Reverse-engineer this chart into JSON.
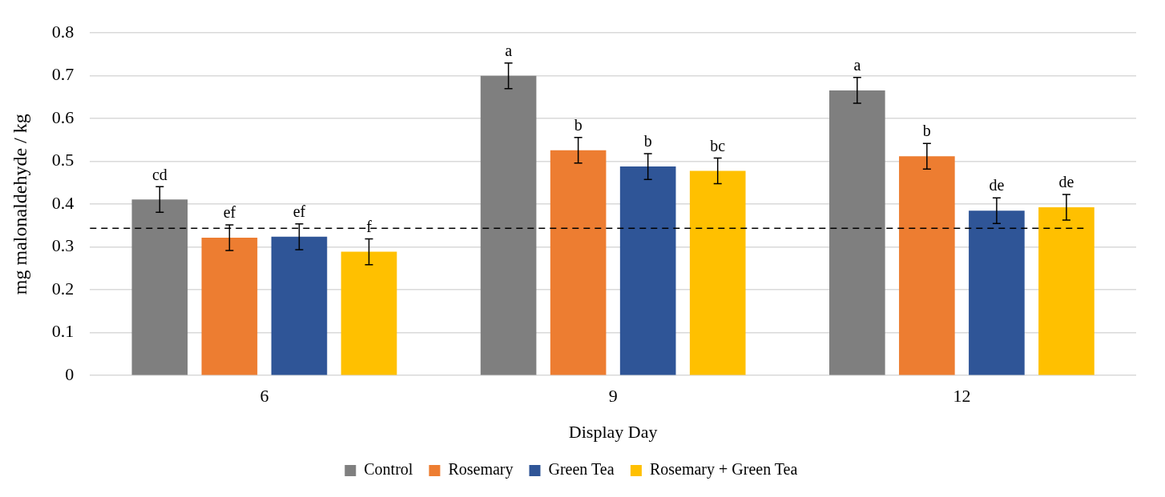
{
  "chart_data": {
    "type": "bar",
    "xlabel": "Display Day",
    "ylabel": "mg malonaldehyde / kg",
    "categories": [
      "6",
      "9",
      "12"
    ],
    "series": [
      {
        "name": "Control",
        "color": "#7f7f7f",
        "values": [
          0.411,
          0.7,
          0.666
        ],
        "errors": [
          0.03,
          0.03,
          0.03
        ],
        "value_labels": [
          "cd",
          "a",
          "a"
        ]
      },
      {
        "name": "Rosemary",
        "color": "#ed7d31",
        "values": [
          0.322,
          0.526,
          0.512
        ],
        "errors": [
          0.03,
          0.03,
          0.03
        ],
        "value_labels": [
          "ef",
          "b",
          "b"
        ]
      },
      {
        "name": "Green Tea",
        "color": "#2f5597",
        "values": [
          0.324,
          0.488,
          0.385
        ],
        "errors": [
          0.03,
          0.03,
          0.03
        ],
        "value_labels": [
          "ef",
          "b",
          "de"
        ]
      },
      {
        "name": "Rosemary + Green Tea",
        "color": "#ffc000",
        "values": [
          0.289,
          0.478,
          0.393
        ],
        "errors": [
          0.03,
          0.03,
          0.03
        ],
        "value_labels": [
          "f",
          "bc",
          "de"
        ]
      }
    ],
    "ylim": [
      0,
      0.8
    ],
    "yticks": [
      0,
      0.1,
      0.2,
      0.3,
      0.4,
      0.5,
      0.6,
      0.7,
      0.8
    ],
    "grid": "y",
    "legend": "bottom",
    "ref_lines": [
      {
        "axis": "y",
        "value": 0.344,
        "color": "#000000",
        "line_style": "dashed"
      }
    ]
  }
}
